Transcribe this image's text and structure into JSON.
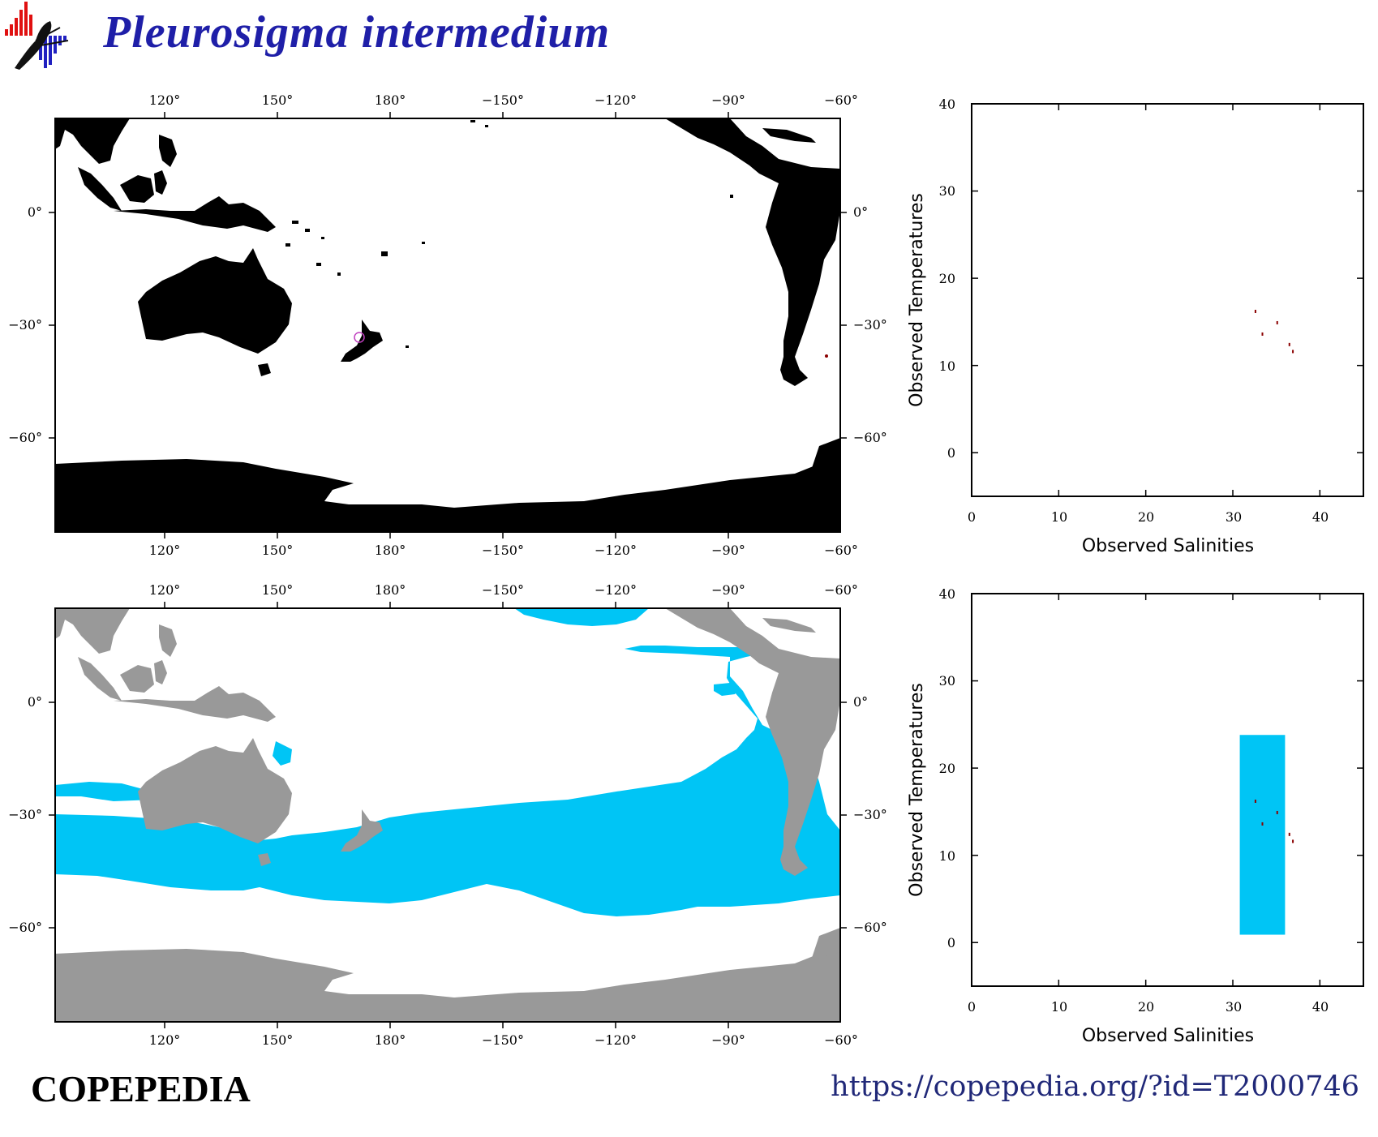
{
  "header": {
    "title": "Pleurosigma intermedium"
  },
  "footer": {
    "brand": "COPEPEDIA",
    "url": "https://copepedia.org/?id=T2000746"
  },
  "maps": {
    "lon_labels": [
      "120°",
      "150°",
      "180°",
      "−150°",
      "−120°",
      "−90°",
      "−60°"
    ],
    "lat_labels": [
      "0°",
      "−30°",
      "−60°"
    ],
    "top_map": {
      "land_color": "#000000",
      "occurrence_marker_color": "#c040c0",
      "record_color": "#8b0000"
    },
    "bottom_map": {
      "land_color": "#999999",
      "habitat_color": "#00c5f5"
    }
  },
  "ts_plots": {
    "x_label": "Observed Salinities",
    "y_label": "Observed Temperatures",
    "x_ticks": [
      "0",
      "10",
      "20",
      "30",
      "40"
    ],
    "y_ticks": [
      "0",
      "10",
      "20",
      "30",
      "40"
    ],
    "top_plot": {
      "points": [
        [
          32.6,
          16.2
        ],
        [
          35.1,
          14.9
        ],
        [
          33.4,
          13.6
        ],
        [
          36.5,
          12.4
        ],
        [
          36.9,
          11.6
        ]
      ]
    },
    "bottom_plot": {
      "habitat_range": {
        "salinity": [
          30.8,
          36.0
        ],
        "temperature": [
          0.9,
          23.8
        ]
      },
      "points": [
        [
          32.6,
          16.2
        ],
        [
          35.1,
          14.9
        ],
        [
          33.4,
          13.6
        ],
        [
          36.5,
          12.4
        ],
        [
          36.9,
          11.6
        ]
      ]
    }
  }
}
